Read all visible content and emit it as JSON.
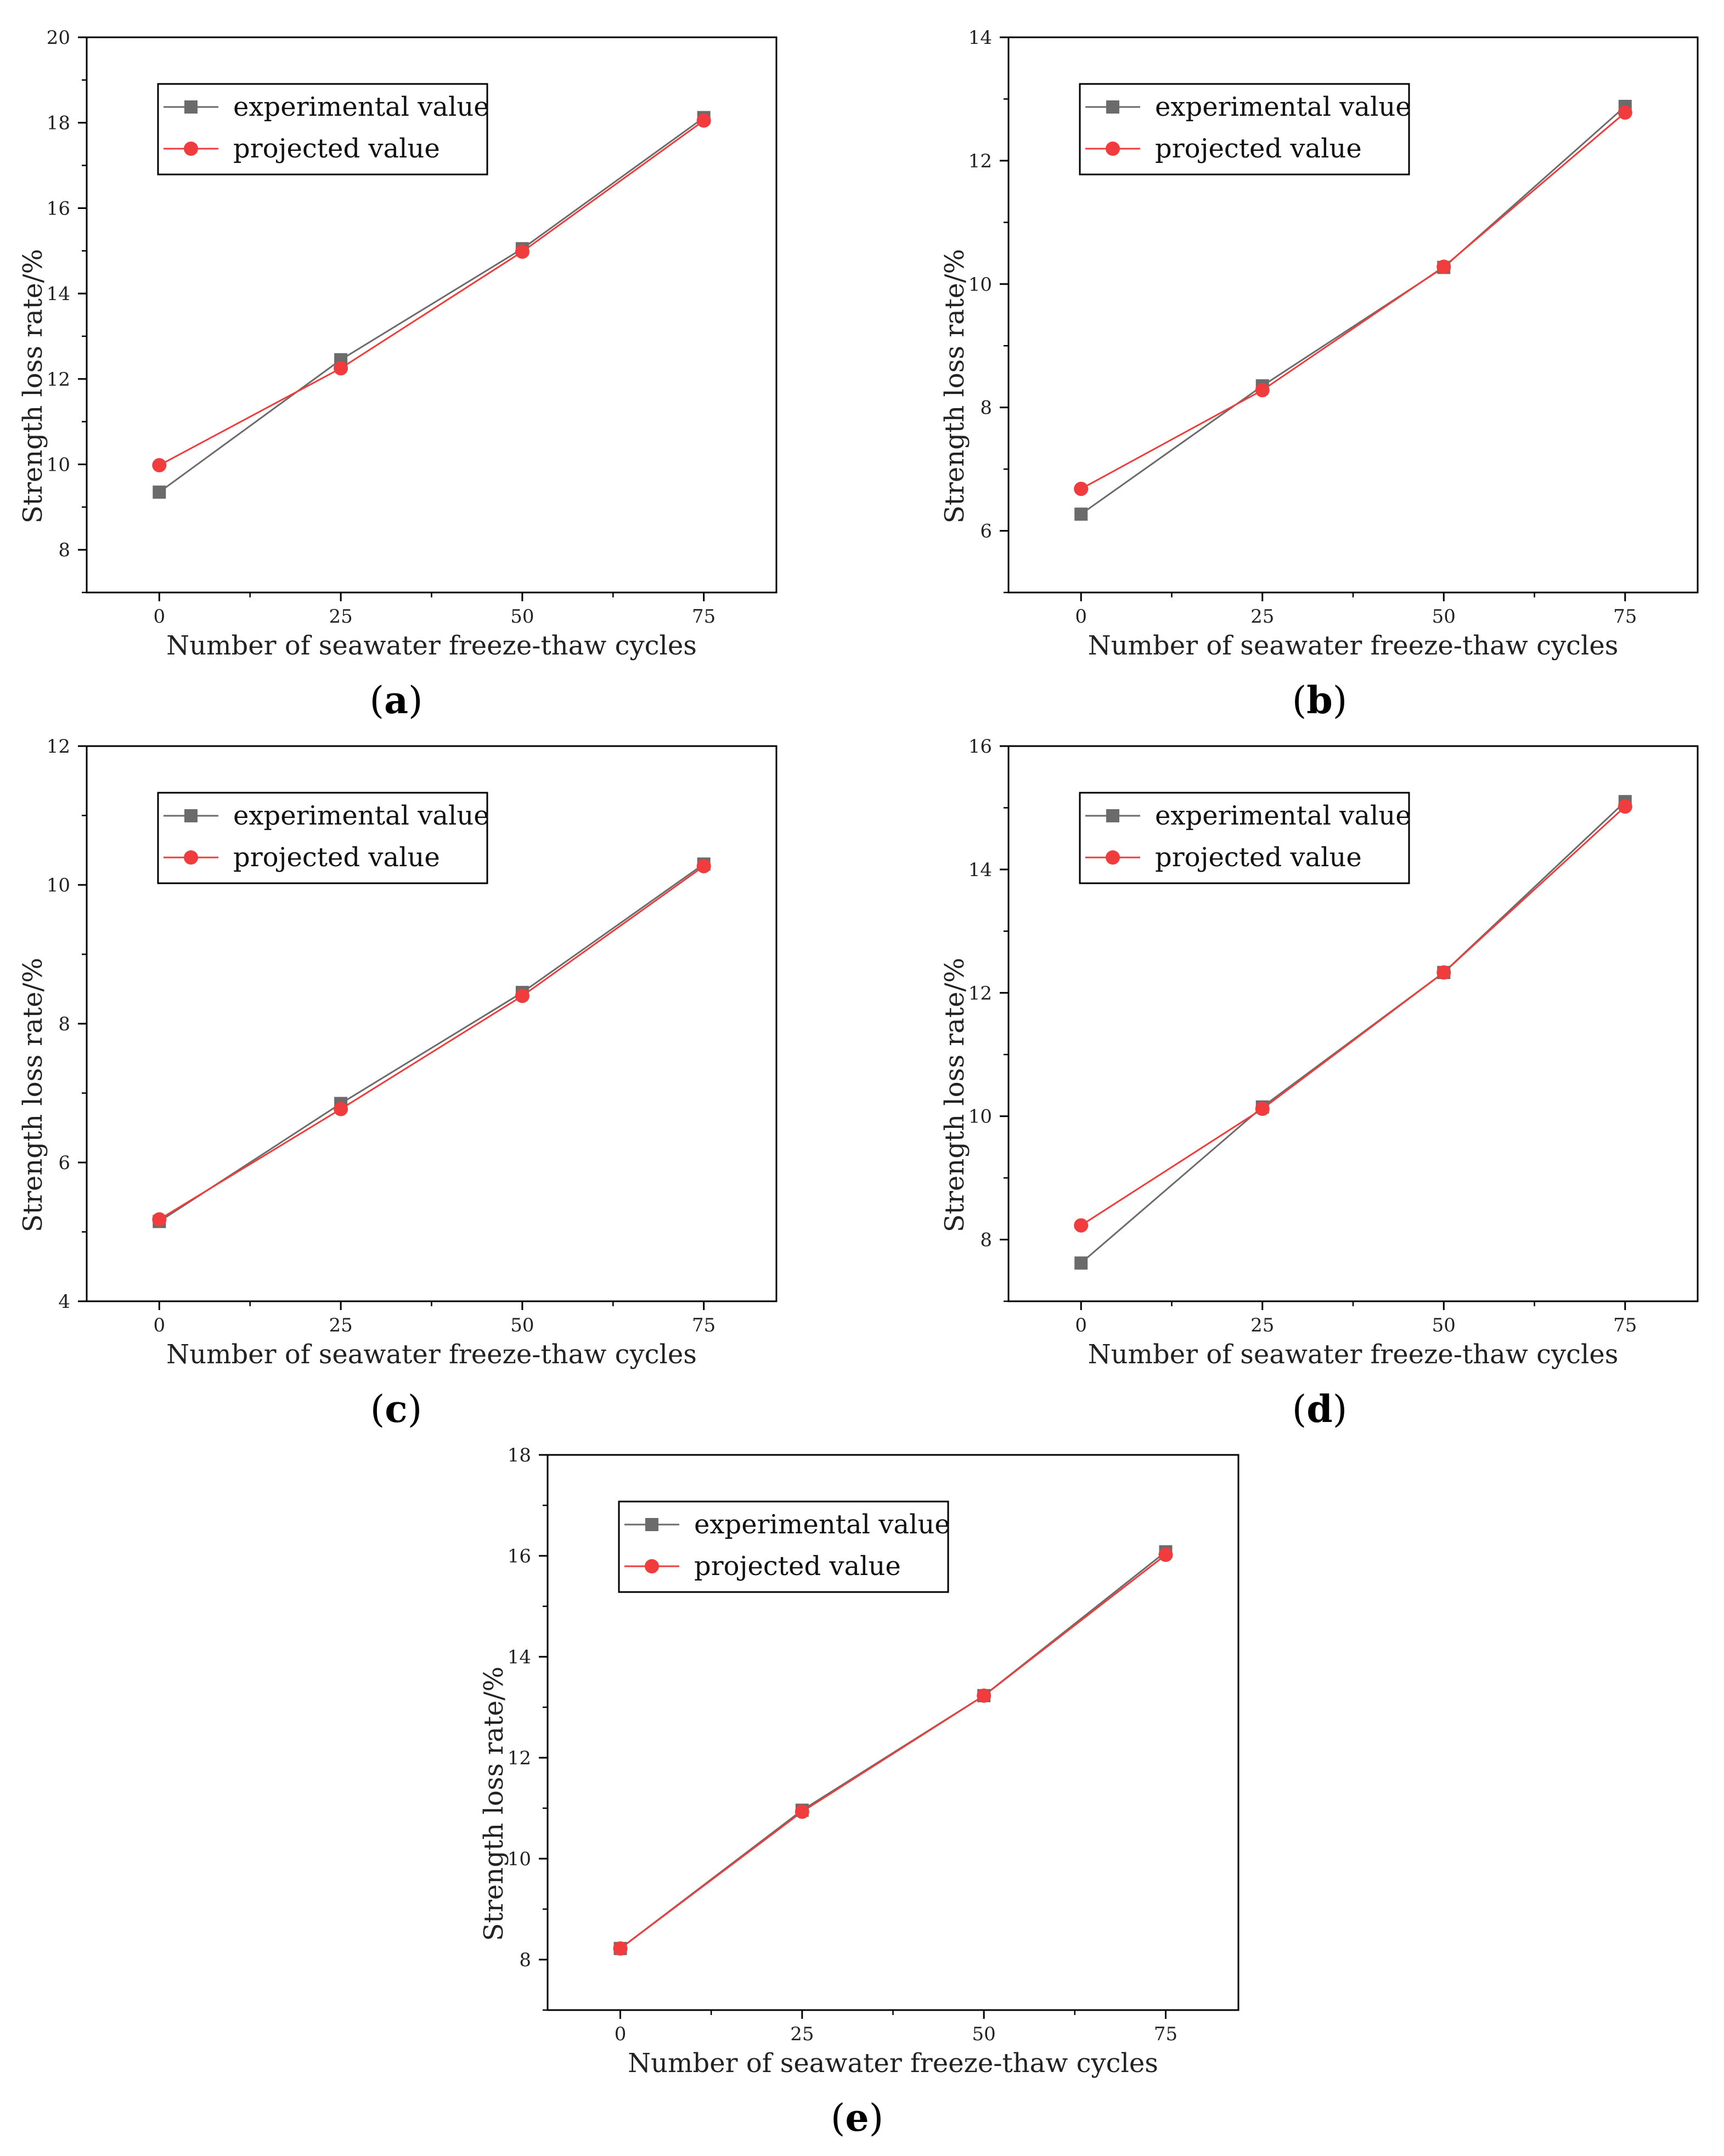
{
  "colors": {
    "experimental": "#6b6b6b",
    "projected": "#f03c3c",
    "axis": "#000000"
  },
  "legend": {
    "experimental": "experimental value",
    "projected": "projected value"
  },
  "chart_data": [
    {
      "type": "line",
      "panel": "a",
      "xlabel": "Number of seawater freeze-thaw cycles",
      "ylabel": "Strength loss rate/%",
      "x": [
        0,
        25,
        50,
        75
      ],
      "xlim": [
        -10,
        85
      ],
      "ylim": [
        7,
        20
      ],
      "yticks": [
        8,
        10,
        12,
        14,
        16,
        18,
        20
      ],
      "series": [
        {
          "name": "experimental value",
          "values": [
            9.35,
            12.45,
            15.05,
            18.12
          ]
        },
        {
          "name": "projected value",
          "values": [
            9.98,
            12.25,
            14.98,
            18.05
          ]
        }
      ]
    },
    {
      "type": "line",
      "panel": "b",
      "xlabel": "Number of seawater freeze-thaw cycles",
      "ylabel": "Strength loss rate/%",
      "x": [
        0,
        25,
        50,
        75
      ],
      "xlim": [
        -10,
        85
      ],
      "ylim": [
        5,
        14
      ],
      "yticks": [
        6,
        8,
        10,
        12,
        14
      ],
      "series": [
        {
          "name": "experimental value",
          "values": [
            6.27,
            8.35,
            10.27,
            12.88
          ]
        },
        {
          "name": "projected value",
          "values": [
            6.68,
            8.28,
            10.28,
            12.78
          ]
        }
      ]
    },
    {
      "type": "line",
      "panel": "c",
      "xlabel": "Number of seawater freeze-thaw cycles",
      "ylabel": "Strength loss rate/%",
      "x": [
        0,
        25,
        50,
        75
      ],
      "xlim": [
        -10,
        85
      ],
      "ylim": [
        4,
        12
      ],
      "yticks": [
        4,
        6,
        8,
        10,
        12
      ],
      "series": [
        {
          "name": "experimental value",
          "values": [
            5.15,
            6.85,
            8.45,
            10.3
          ]
        },
        {
          "name": "projected value",
          "values": [
            5.18,
            6.77,
            8.4,
            10.27
          ]
        }
      ]
    },
    {
      "type": "line",
      "panel": "d",
      "xlabel": "Number of seawater freeze-thaw cycles",
      "ylabel": "Strength loss rate/%",
      "x": [
        0,
        25,
        50,
        75
      ],
      "xlim": [
        -10,
        85
      ],
      "ylim": [
        7,
        16
      ],
      "yticks": [
        8,
        10,
        12,
        14,
        16
      ],
      "series": [
        {
          "name": "experimental value",
          "values": [
            7.62,
            10.15,
            12.33,
            15.1
          ]
        },
        {
          "name": "projected value",
          "values": [
            8.23,
            10.12,
            12.33,
            15.02
          ]
        }
      ]
    },
    {
      "type": "line",
      "panel": "e",
      "xlabel": "Number of seawater freeze-thaw cycles",
      "ylabel": "Strength loss rate/%",
      "x": [
        0,
        25,
        50,
        75
      ],
      "xlim": [
        -10,
        85
      ],
      "ylim": [
        7,
        18
      ],
      "yticks": [
        8,
        10,
        12,
        14,
        16,
        18
      ],
      "series": [
        {
          "name": "experimental value",
          "values": [
            8.22,
            10.96,
            13.23,
            16.08
          ]
        },
        {
          "name": "projected value",
          "values": [
            8.22,
            10.93,
            13.23,
            16.02
          ]
        }
      ]
    }
  ]
}
